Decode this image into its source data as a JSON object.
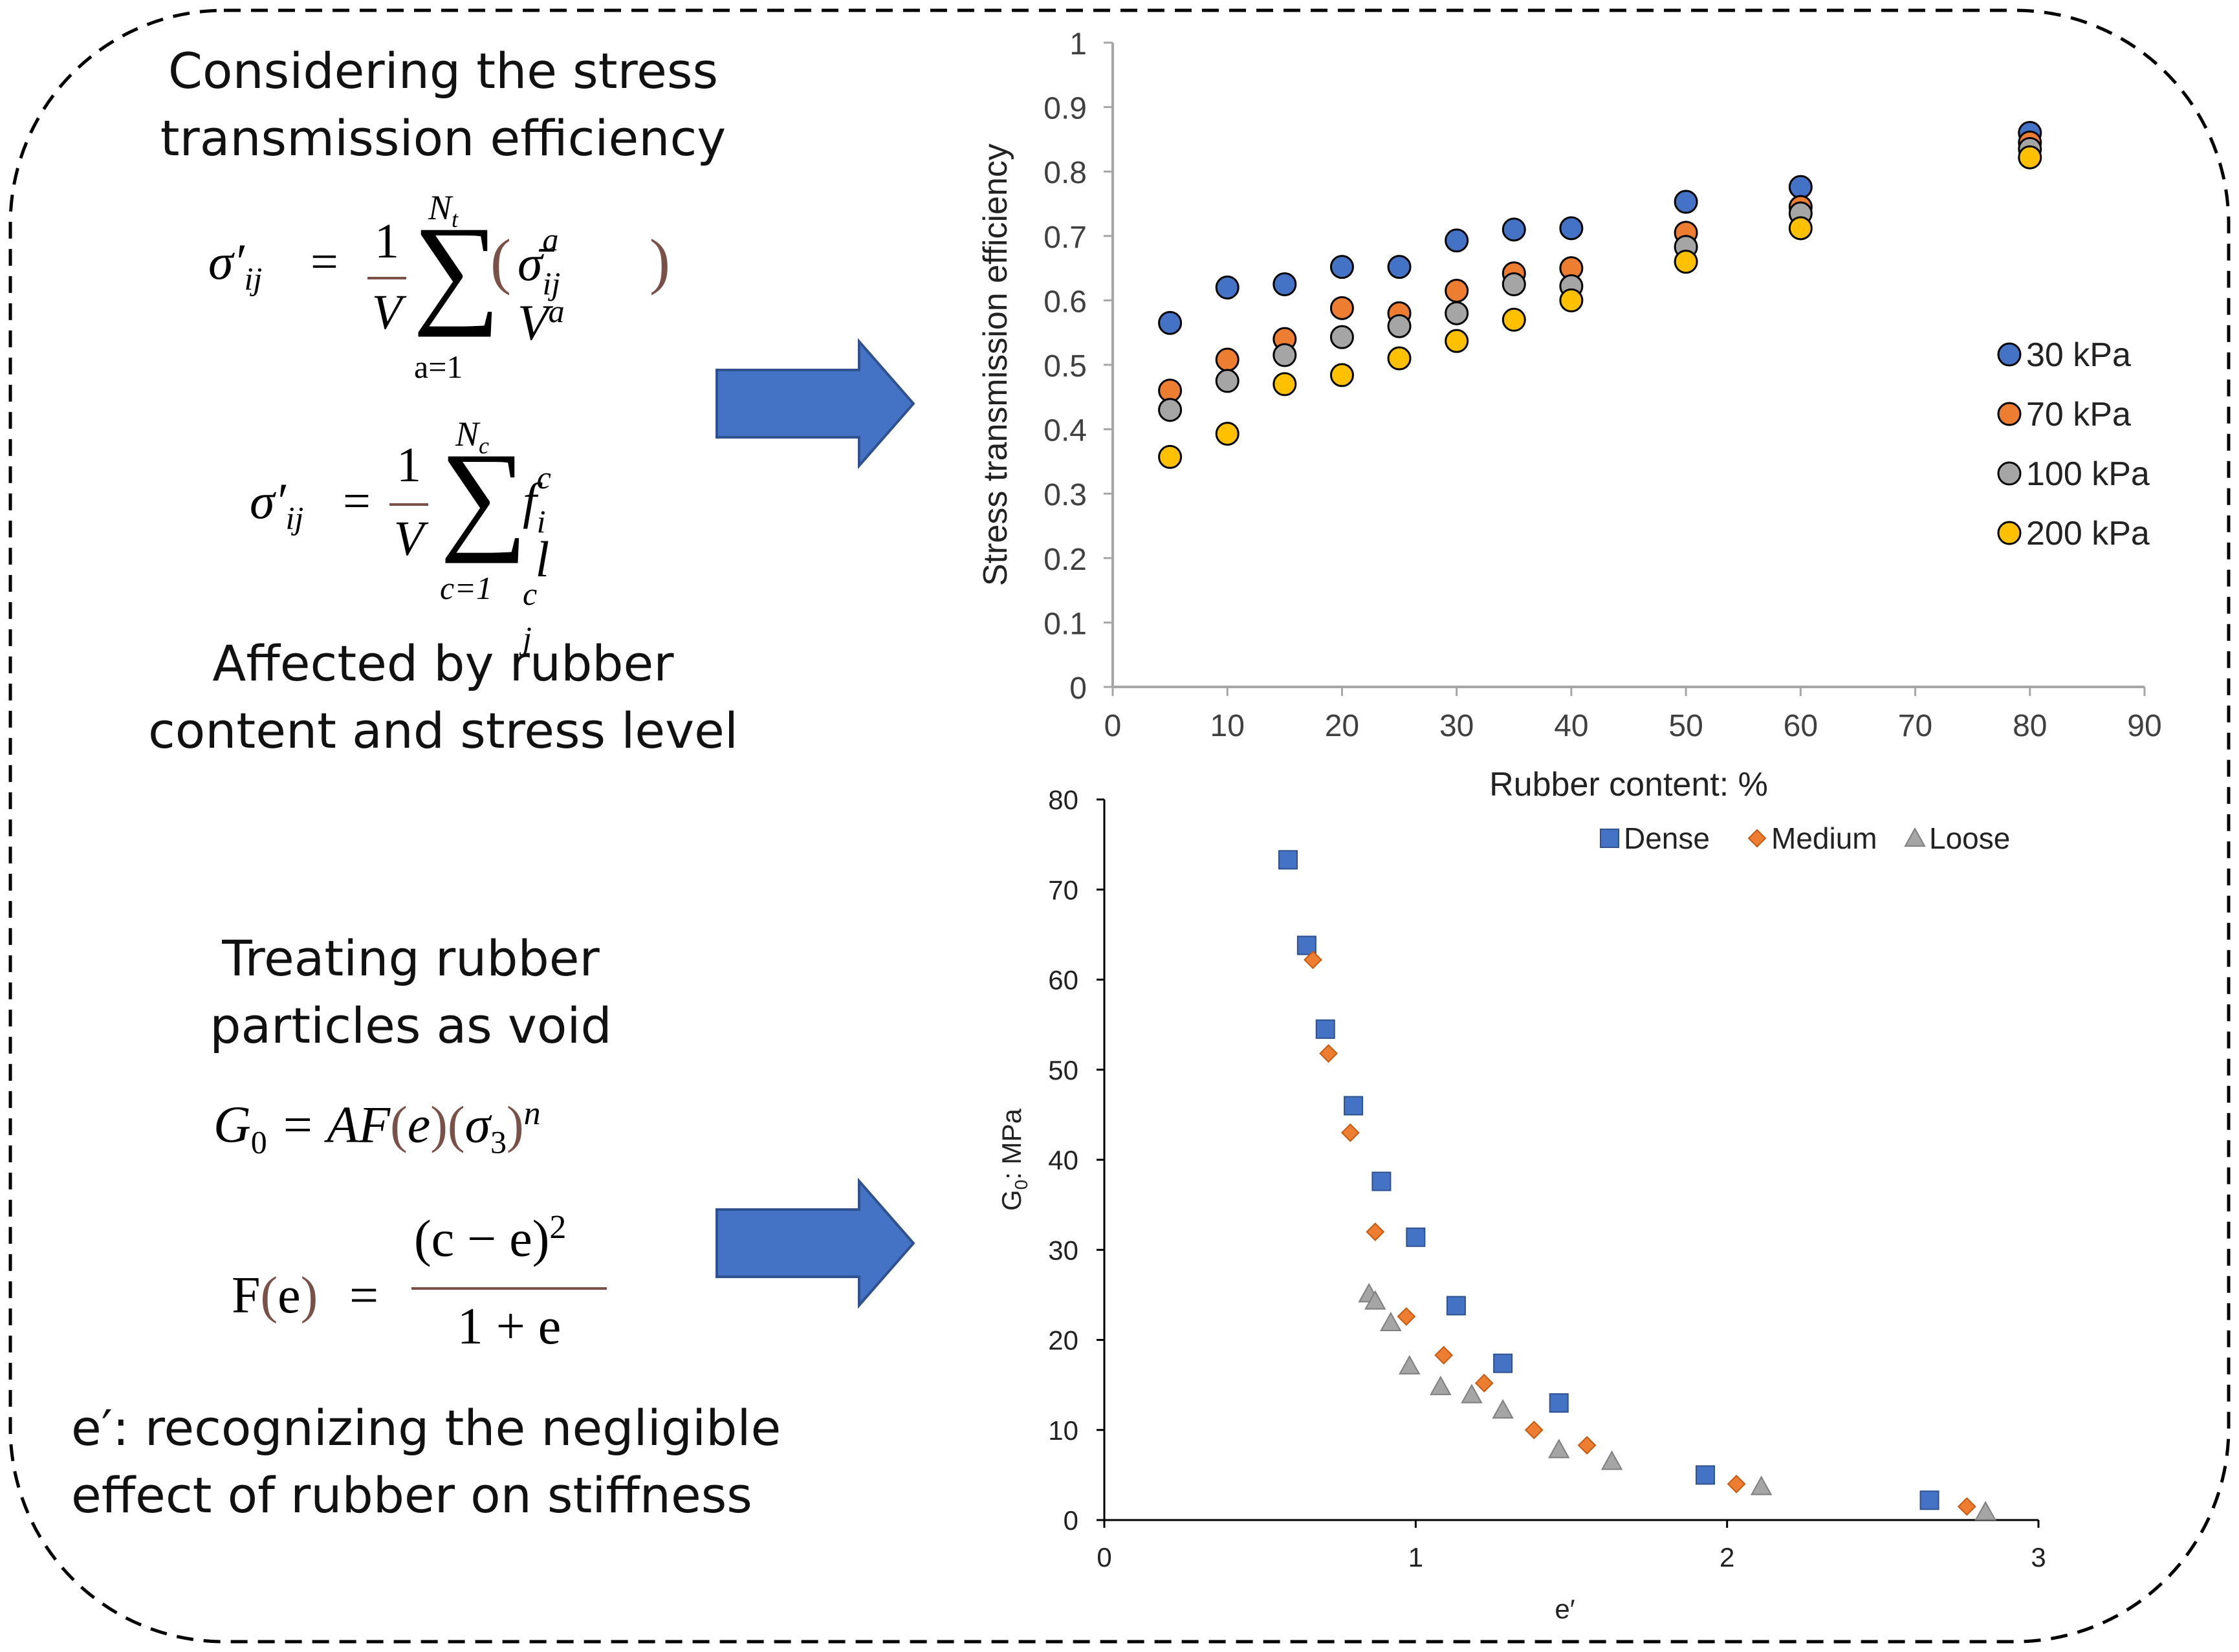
{
  "left_panel": {
    "heading1": [
      "Considering the stress",
      "transmission efficiency"
    ],
    "eq1": {
      "lhs": "σ′",
      "sub": "ij",
      "eq": "=",
      "num": "1",
      "den": "V",
      "top": "N",
      "top_sub": "t",
      "bottom": "a=1",
      "body": "σ̄",
      "body_sup": "a",
      "body_sub": "ij",
      "v": "V",
      "v_sup": "a"
    },
    "eq2": {
      "lhs": "σ′",
      "sub": "ij",
      "eq": "=",
      "num": "1",
      "den": "V",
      "top": "N",
      "top_sub": "c",
      "bottom": "c=1",
      "f": "f",
      "f_sup": "c",
      "f_sub": "i",
      "l": "l",
      "l_sup": "c",
      "l_sub": "j"
    },
    "note1": [
      "Affected by rubber",
      "content and stress level"
    ],
    "heading2": [
      "Treating rubber",
      "particles as void"
    ],
    "eq3": {
      "g": "G",
      "g_sub": "0",
      "rhs": "= AF",
      "e": "e",
      "sigma": "σ",
      "sigma_sub": "3",
      "n": "n"
    },
    "eq4": {
      "f": "F",
      "e": "e",
      "eq": "=",
      "num": "(c − e)",
      "num_sup": "2",
      "den": "1 + e"
    },
    "note2": [
      "e′: recognizing the negligible",
      "effect of rubber on stiffness"
    ]
  },
  "chart_data": [
    {
      "type": "scatter",
      "title": "",
      "xlabel": "Rubber content: %",
      "ylabel": "Stress transmission efficiency",
      "xlim": [
        0,
        90
      ],
      "ylim": [
        0,
        1
      ],
      "x_ticks": [
        "0",
        "10",
        "20",
        "30",
        "40",
        "50",
        "60",
        "70",
        "80",
        "90"
      ],
      "y_ticks": [
        "0",
        "0.1",
        "0.2",
        "0.3",
        "0.4",
        "0.5",
        "0.6",
        "0.7",
        "0.8",
        "0.9",
        "1"
      ],
      "grid": false,
      "legend_position": "right",
      "x": [
        5,
        10,
        15,
        20,
        25,
        30,
        35,
        40,
        50,
        60,
        80
      ],
      "series": [
        {
          "name": "30 kPa",
          "color": "#4472c4",
          "values": [
            0.565,
            0.62,
            0.625,
            0.652,
            0.652,
            0.693,
            0.71,
            0.712,
            0.753,
            0.776,
            0.86
          ]
        },
        {
          "name": "70 kPa",
          "color": "#ed7d31",
          "values": [
            0.46,
            0.508,
            0.54,
            0.588,
            0.58,
            0.615,
            0.642,
            0.65,
            0.705,
            0.745,
            0.845
          ]
        },
        {
          "name": "100 kPa",
          "color": "#a5a5a5",
          "values": [
            0.43,
            0.475,
            0.515,
            0.543,
            0.56,
            0.58,
            0.625,
            0.622,
            0.683,
            0.735,
            0.835
          ]
        },
        {
          "name": "200 kPa",
          "color": "#ffc000",
          "values": [
            0.357,
            0.393,
            0.47,
            0.484,
            0.51,
            0.537,
            0.57,
            0.6,
            0.66,
            0.712,
            0.822
          ]
        }
      ]
    },
    {
      "type": "scatter",
      "title": "",
      "xlabel": "e′",
      "ylabel": "G",
      "ylabel_sub": "0",
      "ylabel_rest": ": MPa",
      "xlim": [
        0,
        3
      ],
      "ylim": [
        0,
        80
      ],
      "x_ticks": [
        "0",
        "1",
        "2",
        "3"
      ],
      "y_ticks": [
        "0",
        "10",
        "20",
        "30",
        "40",
        "50",
        "60",
        "70",
        "80"
      ],
      "grid": false,
      "legend_position": "top",
      "series": [
        {
          "name": "Dense",
          "marker": "square",
          "color": "#4472c4",
          "x": [
            0.59,
            0.65,
            0.71,
            0.8,
            0.89,
            1.0,
            1.13,
            1.28,
            1.46,
            1.93,
            2.65
          ],
          "y": [
            73.3,
            63.8,
            54.5,
            46.0,
            37.6,
            31.4,
            23.8,
            17.4,
            13.0,
            5.0,
            2.2
          ]
        },
        {
          "name": "Medium",
          "marker": "diamond",
          "color": "#ed7d31",
          "x": [
            0.67,
            0.72,
            0.79,
            0.87,
            0.97,
            1.09,
            1.22,
            1.38,
            1.55,
            2.03,
            2.77
          ],
          "y": [
            62.2,
            51.8,
            43.0,
            32.0,
            22.6,
            18.3,
            15.2,
            10.0,
            8.3,
            4.0,
            1.5
          ]
        },
        {
          "name": "Loose",
          "marker": "triangle",
          "color": "#a5a5a5",
          "x": [
            0.85,
            0.87,
            0.92,
            0.98,
            1.08,
            1.18,
            1.28,
            1.46,
            1.63,
            2.11,
            2.83
          ],
          "y": [
            25.1,
            24.3,
            21.9,
            17.1,
            14.8,
            13.9,
            12.2,
            7.8,
            6.5,
            3.7,
            0.9
          ]
        }
      ]
    }
  ]
}
